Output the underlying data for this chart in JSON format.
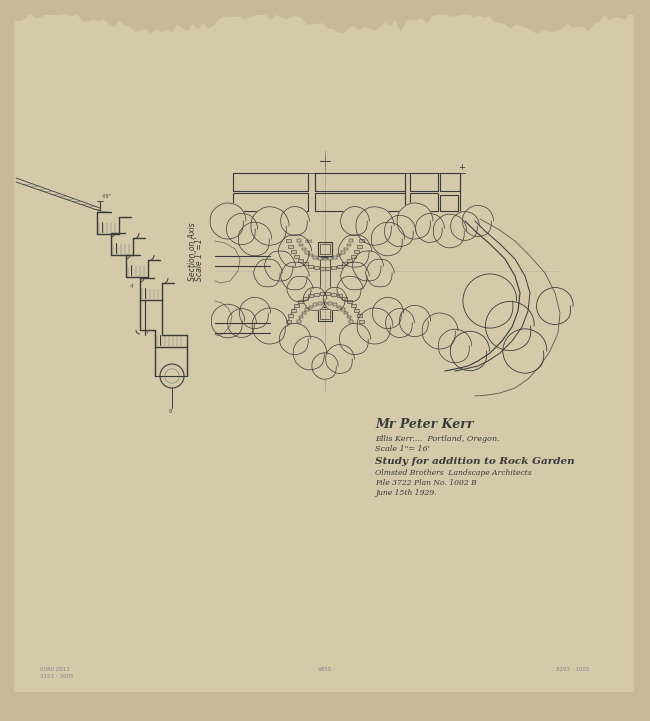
{
  "bg_color": "#c8b99a",
  "paper_color": "#d4c9a8",
  "line_color": "#3a3a3a",
  "dim_color": "#555555",
  "title_lines": [
    "Mr Peter Kerr",
    "Ellis Kerr....  Portland, Oregon.",
    "Scale 1\"= 16'",
    "Study for addition to Rock Garden",
    "Olmsted Brothers  Landscape Architects",
    "File 3722 Plan No. 1002 B",
    "June 15th 1929."
  ],
  "section_label1": "Section on Axis",
  "section_label2": "Scale 1\"=1'",
  "fig_width": 6.5,
  "fig_height": 7.21
}
